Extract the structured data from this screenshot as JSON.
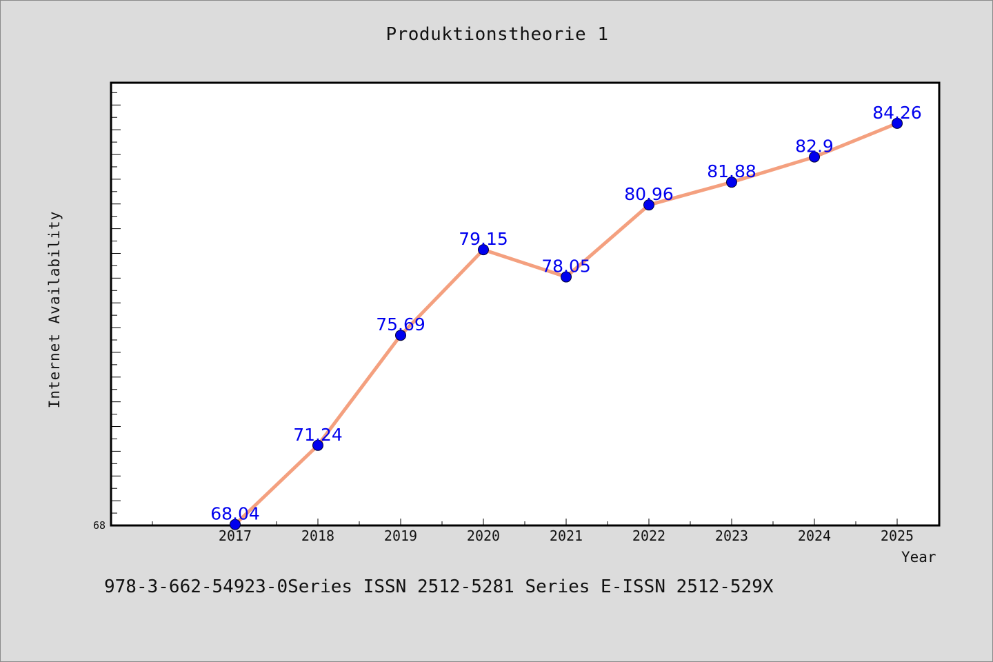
{
  "chart_data": {
    "type": "line",
    "title": "Produktionstheorie 1",
    "xlabel": "Year",
    "ylabel": "Internet Availability",
    "categories": [
      "2017",
      "2018",
      "2019",
      "2020",
      "2021",
      "2022",
      "2023",
      "2024",
      "2025"
    ],
    "series": [
      {
        "values": [
          68.04,
          71.24,
          75.69,
          79.15,
          78.05,
          80.96,
          81.88,
          82.9,
          84.26
        ],
        "labels": [
          "68.04",
          "71.24",
          "75.69",
          "79.15",
          "78.05",
          "80.96",
          "81.88",
          "82.9",
          "84.26"
        ],
        "line_color": "#f4a07f",
        "marker_color": "#0000ee",
        "label_color": "#0000ee"
      }
    ],
    "ylim": [
      68,
      85.9
    ],
    "ytick_label": "68",
    "grid": false,
    "legend": false
  },
  "footer": "978-3-662-54923-0Series ISSN 2512-5281 Series E-ISSN 2512-529X"
}
